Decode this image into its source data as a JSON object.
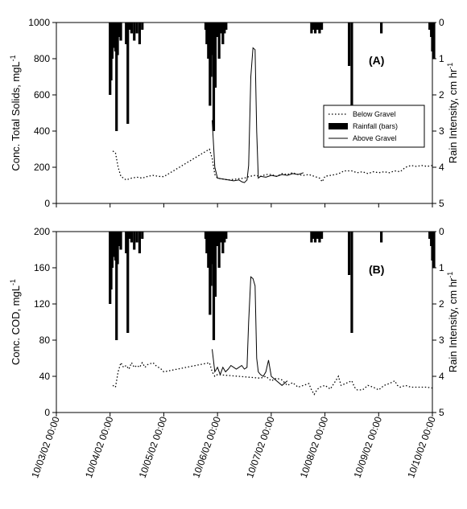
{
  "chart_data": [
    {
      "type": "line",
      "panel_label": "(A)",
      "ylabel": "Conc. Total Solids, mgL",
      "ylabel_sup": "-1",
      "y2label": "Rain Intensity, cm hr",
      "y2label_sup": "-1",
      "ylim": [
        0,
        1000
      ],
      "yticks": [
        "0",
        "200",
        "400",
        "600",
        "800",
        "1000"
      ],
      "y2lim": [
        0,
        5
      ],
      "y2ticks": [
        "0",
        "1",
        "2",
        "3",
        "4",
        "5"
      ],
      "legend": {
        "placement": "right-middle",
        "entries": [
          {
            "label": "Below Gravel",
            "style": "dotted"
          },
          {
            "label": "Rainfall (bars)",
            "style": "bar"
          },
          {
            "label": "Above Gravel",
            "style": "solid"
          }
        ]
      },
      "series": [
        {
          "name": "Below Gravel",
          "style": "dotted",
          "points": [
            [
              1.05,
              290
            ],
            [
              1.1,
              280
            ],
            [
              1.15,
              200
            ],
            [
              1.2,
              150
            ],
            [
              1.3,
              130
            ],
            [
              1.4,
              140
            ],
            [
              1.5,
              145
            ],
            [
              1.6,
              140
            ],
            [
              1.7,
              150
            ],
            [
              1.8,
              155
            ],
            [
              1.9,
              150
            ],
            [
              2.0,
              148
            ],
            [
              2.85,
              300
            ],
            [
              2.9,
              250
            ],
            [
              2.95,
              160
            ],
            [
              3.0,
              140
            ],
            [
              3.2,
              130
            ],
            [
              3.5,
              140
            ],
            [
              3.6,
              150
            ],
            [
              3.7,
              155
            ],
            [
              3.8,
              150
            ],
            [
              3.9,
              160
            ],
            [
              4.0,
              160
            ],
            [
              4.1,
              150
            ],
            [
              4.2,
              165
            ],
            [
              4.3,
              160
            ],
            [
              4.4,
              170
            ],
            [
              4.5,
              160
            ],
            [
              4.6,
              155
            ],
            [
              4.7,
              160
            ],
            [
              4.8,
              150
            ],
            [
              4.9,
              140
            ],
            [
              4.95,
              120
            ],
            [
              5.0,
              150
            ],
            [
              5.1,
              155
            ],
            [
              5.2,
              160
            ],
            [
              5.3,
              170
            ],
            [
              5.35,
              180
            ],
            [
              5.5,
              180
            ],
            [
              5.6,
              170
            ],
            [
              5.7,
              175
            ],
            [
              5.8,
              165
            ],
            [
              5.9,
              175
            ],
            [
              6.0,
              170
            ],
            [
              6.1,
              175
            ],
            [
              6.2,
              170
            ],
            [
              6.3,
              180
            ],
            [
              6.4,
              175
            ],
            [
              6.5,
              200
            ],
            [
              6.6,
              210
            ],
            [
              6.7,
              205
            ],
            [
              6.8,
              210
            ],
            [
              6.9,
              205
            ],
            [
              7.0,
              210
            ]
          ]
        },
        {
          "name": "Above Gravel",
          "style": "solid",
          "points": [
            [
              2.9,
              460
            ],
            [
              2.95,
              200
            ],
            [
              3.0,
              140
            ],
            [
              3.1,
              135
            ],
            [
              3.2,
              130
            ],
            [
              3.3,
              125
            ],
            [
              3.4,
              130
            ],
            [
              3.45,
              120
            ],
            [
              3.5,
              115
            ],
            [
              3.55,
              130
            ],
            [
              3.58,
              210
            ],
            [
              3.62,
              700
            ],
            [
              3.66,
              860
            ],
            [
              3.7,
              850
            ],
            [
              3.73,
              400
            ],
            [
              3.76,
              140
            ],
            [
              3.8,
              150
            ],
            [
              3.9,
              145
            ],
            [
              4.0,
              155
            ],
            [
              4.1,
              150
            ],
            [
              4.2,
              160
            ],
            [
              4.3,
              155
            ],
            [
              4.4,
              165
            ],
            [
              4.5,
              160
            ],
            [
              4.6,
              170
            ]
          ]
        }
      ],
      "rain": [
        [
          1.0,
          2.0
        ],
        [
          1.02,
          1.6
        ],
        [
          1.04,
          1.0
        ],
        [
          1.06,
          0.7
        ],
        [
          1.08,
          0.5
        ],
        [
          1.1,
          0.8
        ],
        [
          1.12,
          3.0
        ],
        [
          1.14,
          0.9
        ],
        [
          1.16,
          0.4
        ],
        [
          1.18,
          0.2
        ],
        [
          1.2,
          0.5
        ],
        [
          1.3,
          0.6
        ],
        [
          1.33,
          2.8
        ],
        [
          1.36,
          0.2
        ],
        [
          1.4,
          0.3
        ],
        [
          1.45,
          0.5
        ],
        [
          1.5,
          0.3
        ],
        [
          1.55,
          0.6
        ],
        [
          1.6,
          0.2
        ],
        [
          2.78,
          0.2
        ],
        [
          2.8,
          0.6
        ],
        [
          2.83,
          1.0
        ],
        [
          2.86,
          2.3
        ],
        [
          2.88,
          1.5
        ],
        [
          2.9,
          0.9
        ],
        [
          2.93,
          3.0
        ],
        [
          2.96,
          1.8
        ],
        [
          3.0,
          0.4
        ],
        [
          3.03,
          1.0
        ],
        [
          3.06,
          0.3
        ],
        [
          3.1,
          0.6
        ],
        [
          3.13,
          0.3
        ],
        [
          3.16,
          0.2
        ],
        [
          4.75,
          0.3
        ],
        [
          4.78,
          0.2
        ],
        [
          4.82,
          0.3
        ],
        [
          4.86,
          0.2
        ],
        [
          4.9,
          0.3
        ],
        [
          4.94,
          0.2
        ],
        [
          5.45,
          1.2
        ],
        [
          5.5,
          2.8
        ],
        [
          6.05,
          0.3
        ],
        [
          6.95,
          0.2
        ],
        [
          6.98,
          0.4
        ],
        [
          7.0,
          0.8
        ],
        [
          7.03,
          1.0
        ]
      ]
    },
    {
      "type": "line",
      "panel_label": "(B)",
      "ylabel": "Conc. COD, mgL",
      "ylabel_sup": "-1",
      "y2label": "Rain Intensity, cm hr",
      "y2label_sup": "-1",
      "ylim": [
        0,
        200
      ],
      "yticks": [
        "0",
        "40",
        "80",
        "120",
        "160",
        "200"
      ],
      "y2lim": [
        0,
        5
      ],
      "y2ticks": [
        "0",
        "1",
        "2",
        "3",
        "4",
        "5"
      ],
      "series": [
        {
          "name": "Below Gravel",
          "style": "dotted",
          "points": [
            [
              1.05,
              30
            ],
            [
              1.1,
              28
            ],
            [
              1.15,
              45
            ],
            [
              1.2,
              55
            ],
            [
              1.25,
              50
            ],
            [
              1.3,
              52
            ],
            [
              1.35,
              48
            ],
            [
              1.4,
              55
            ],
            [
              1.45,
              50
            ],
            [
              1.5,
              52
            ],
            [
              1.55,
              50
            ],
            [
              1.6,
              55
            ],
            [
              1.65,
              50
            ],
            [
              1.7,
              53
            ],
            [
              1.8,
              55
            ],
            [
              1.85,
              52
            ],
            [
              1.9,
              50
            ],
            [
              1.95,
              48
            ],
            [
              2.0,
              45
            ],
            [
              2.85,
              55
            ],
            [
              2.9,
              45
            ],
            [
              2.95,
              40
            ],
            [
              3.0,
              42
            ],
            [
              3.8,
              38
            ],
            [
              3.9,
              40
            ],
            [
              4.0,
              35
            ],
            [
              4.1,
              38
            ],
            [
              4.2,
              36
            ],
            [
              4.3,
              30
            ],
            [
              4.4,
              33
            ],
            [
              4.5,
              28
            ],
            [
              4.6,
              30
            ],
            [
              4.7,
              32
            ],
            [
              4.75,
              25
            ],
            [
              4.8,
              20
            ],
            [
              4.85,
              25
            ],
            [
              4.9,
              28
            ],
            [
              5.0,
              30
            ],
            [
              5.1,
              26
            ],
            [
              5.2,
              35
            ],
            [
              5.25,
              40
            ],
            [
              5.3,
              30
            ],
            [
              5.5,
              35
            ],
            [
              5.55,
              28
            ],
            [
              5.6,
              25
            ],
            [
              5.7,
              25
            ],
            [
              5.8,
              30
            ],
            [
              5.9,
              28
            ],
            [
              6.0,
              25
            ],
            [
              6.1,
              30
            ],
            [
              6.2,
              32
            ],
            [
              6.3,
              35
            ],
            [
              6.35,
              30
            ],
            [
              6.4,
              28
            ],
            [
              6.5,
              30
            ],
            [
              6.6,
              28
            ],
            [
              6.7,
              28
            ],
            [
              6.8,
              28
            ],
            [
              6.9,
              28
            ],
            [
              7.0,
              27
            ]
          ]
        },
        {
          "name": "Above Gravel",
          "style": "solid",
          "points": [
            [
              2.9,
              70
            ],
            [
              2.95,
              45
            ],
            [
              3.0,
              50
            ],
            [
              3.05,
              42
            ],
            [
              3.1,
              50
            ],
            [
              3.15,
              45
            ],
            [
              3.2,
              48
            ],
            [
              3.25,
              52
            ],
            [
              3.3,
              50
            ],
            [
              3.35,
              48
            ],
            [
              3.4,
              50
            ],
            [
              3.45,
              52
            ],
            [
              3.5,
              48
            ],
            [
              3.55,
              50
            ],
            [
              3.58,
              100
            ],
            [
              3.62,
              150
            ],
            [
              3.66,
              148
            ],
            [
              3.7,
              140
            ],
            [
              3.73,
              60
            ],
            [
              3.76,
              45
            ],
            [
              3.8,
              42
            ],
            [
              3.85,
              40
            ],
            [
              3.9,
              45
            ],
            [
              3.95,
              58
            ],
            [
              4.0,
              40
            ],
            [
              4.1,
              35
            ],
            [
              4.2,
              30
            ],
            [
              4.3,
              35
            ]
          ]
        }
      ],
      "rain": [
        [
          1.0,
          2.0
        ],
        [
          1.02,
          1.6
        ],
        [
          1.04,
          1.0
        ],
        [
          1.06,
          0.7
        ],
        [
          1.08,
          0.5
        ],
        [
          1.1,
          0.8
        ],
        [
          1.12,
          3.0
        ],
        [
          1.14,
          0.9
        ],
        [
          1.16,
          0.4
        ],
        [
          1.18,
          0.2
        ],
        [
          1.2,
          0.5
        ],
        [
          1.3,
          0.6
        ],
        [
          1.33,
          2.8
        ],
        [
          1.36,
          0.2
        ],
        [
          1.4,
          0.3
        ],
        [
          1.45,
          0.5
        ],
        [
          1.5,
          0.3
        ],
        [
          1.55,
          0.6
        ],
        [
          1.6,
          0.2
        ],
        [
          2.78,
          0.2
        ],
        [
          2.8,
          0.6
        ],
        [
          2.83,
          1.0
        ],
        [
          2.86,
          2.3
        ],
        [
          2.88,
          1.5
        ],
        [
          2.9,
          0.9
        ],
        [
          2.93,
          3.0
        ],
        [
          2.96,
          1.8
        ],
        [
          3.0,
          0.4
        ],
        [
          3.03,
          1.0
        ],
        [
          3.06,
          0.3
        ],
        [
          3.1,
          0.6
        ],
        [
          3.13,
          0.3
        ],
        [
          3.16,
          0.2
        ],
        [
          4.75,
          0.3
        ],
        [
          4.78,
          0.2
        ],
        [
          4.82,
          0.3
        ],
        [
          4.86,
          0.2
        ],
        [
          4.9,
          0.3
        ],
        [
          4.94,
          0.2
        ],
        [
          5.45,
          1.2
        ],
        [
          5.5,
          2.8
        ],
        [
          6.05,
          0.3
        ],
        [
          6.95,
          0.2
        ],
        [
          6.98,
          0.4
        ],
        [
          7.0,
          0.8
        ],
        [
          7.03,
          1.0
        ]
      ]
    }
  ],
  "x_axis": {
    "xlim": [
      0,
      7
    ],
    "ticks": [
      "10/03/02 00:00",
      "10/04/02 00:00",
      "10/05/02 00:00",
      "10/06/02 00:00",
      "10/07/02 00:00",
      "10/08/02 00:00",
      "10/09/02 00:00",
      "10/10/02 00:00"
    ]
  }
}
